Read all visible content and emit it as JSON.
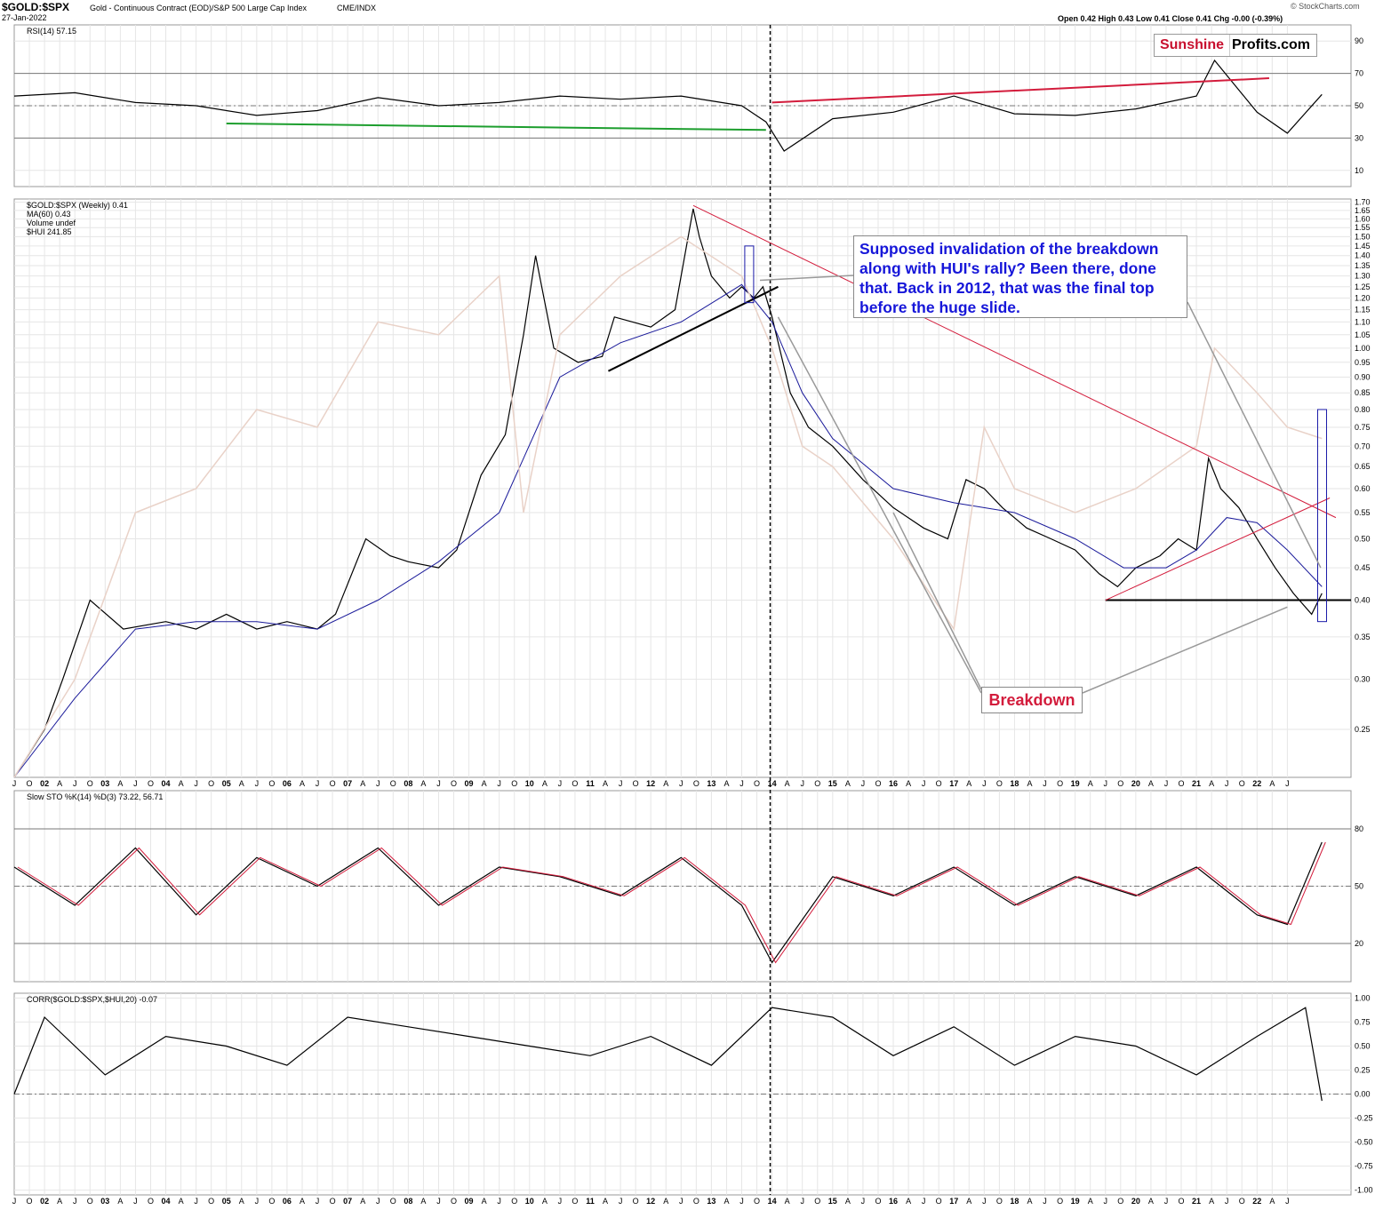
{
  "header": {
    "symbol": "$GOLD:$SPX",
    "description": "Gold - Continuous Contract (EOD)/S&P 500 Large Cap Index",
    "exchange": "CME/INDX",
    "date": "27-Jan-2022",
    "ohlc": "Open 0.42 High 0.43 Low 0.41 Close 0.41 Chg -0.00 (-0.39%)",
    "credit": "© StockCharts.com"
  },
  "logo": {
    "part1": "Sunshine",
    "part2": "Profits.com"
  },
  "annotations": {
    "invalidation": "Supposed invalidation of the breakdown along with HUI's rally? Been there, done that. Back in 2012, that was the final top before the huge slide.",
    "breakdown": "Breakdown"
  },
  "colors": {
    "price_up": "#000000",
    "price_down": "#d31c3c",
    "ma": "#1a1a9a",
    "hui": "#e9d2c8",
    "green_line": "#1d9e2e",
    "red_line": "#d31c3c",
    "blue_box": "#1a1aa8"
  },
  "chart_data": [
    {
      "type": "line",
      "panel": "RSI",
      "legend": "RSI(14) 57.15",
      "yticks": [
        10,
        30,
        50,
        70,
        90
      ],
      "ylim": [
        0,
        100
      ],
      "levels": [
        30,
        50,
        70
      ],
      "x": [
        2000.5,
        2001.5,
        2002.5,
        2003.5,
        2004.5,
        2005.5,
        2006.5,
        2007.5,
        2008.5,
        2009.5,
        2010.5,
        2011.5,
        2012.5,
        2012.9,
        2013.2,
        2014.0,
        2015.0,
        2016.0,
        2017.0,
        2018.0,
        2019.0,
        2020.0,
        2020.3,
        2021.0,
        2021.5,
        2022.07
      ],
      "values": [
        56,
        58,
        52,
        50,
        44,
        47,
        55,
        50,
        52,
        56,
        54,
        56,
        50,
        40,
        22,
        42,
        46,
        56,
        45,
        44,
        48,
        56,
        78,
        46,
        33,
        57
      ]
    },
    {
      "type": "line",
      "panel": "price",
      "legend": [
        "$GOLD:$SPX (Weekly) 0.41",
        "MA(60) 0.43",
        "Volume undef",
        "$HUI 241.85"
      ],
      "yscale": "log",
      "yticks": [
        0.25,
        0.3,
        0.35,
        0.4,
        0.45,
        0.5,
        0.55,
        0.6,
        0.65,
        0.7,
        0.75,
        0.8,
        0.85,
        0.9,
        0.95,
        1.0,
        1.05,
        1.1,
        1.15,
        1.2,
        1.25,
        1.3,
        1.35,
        1.4,
        1.45,
        1.5,
        1.55,
        1.6,
        1.65,
        1.7
      ],
      "xticks": [
        "J",
        "O",
        "02",
        "A",
        "J",
        "O",
        "03",
        "A",
        "J",
        "O",
        "04",
        "A",
        "J",
        "O",
        "05",
        "A",
        "J",
        "O",
        "06",
        "A",
        "J",
        "O",
        "07",
        "A",
        "J",
        "O",
        "08",
        "A",
        "J",
        "O",
        "09",
        "A",
        "J",
        "O",
        "10",
        "A",
        "J",
        "O",
        "11",
        "A",
        "J",
        "O",
        "12",
        "A",
        "J",
        "O",
        "13",
        "A",
        "J",
        "O",
        "14",
        "A",
        "J",
        "O",
        "15",
        "A",
        "J",
        "O",
        "16",
        "A",
        "J",
        "O",
        "17",
        "A",
        "J",
        "O",
        "18",
        "A",
        "J",
        "O",
        "19",
        "A",
        "J",
        "O",
        "20",
        "A",
        "J",
        "O",
        "21",
        "A",
        "J",
        "O",
        "22",
        "A",
        "J"
      ],
      "ylim": [
        0.21,
        1.72
      ],
      "series": [
        {
          "name": "$GOLD:$SPX",
          "x": [
            2000.5,
            2001.0,
            2001.3,
            2001.75,
            2002.3,
            2003.0,
            2003.5,
            2004.0,
            2004.5,
            2005.0,
            2005.5,
            2005.8,
            2006.3,
            2006.7,
            2007.0,
            2007.5,
            2007.8,
            2008.2,
            2008.6,
            2008.9,
            2009.1,
            2009.4,
            2009.8,
            2010.2,
            2010.4,
            2010.7,
            2011.0,
            2011.4,
            2011.7,
            2011.8,
            2012.0,
            2012.3,
            2012.5,
            2012.7,
            2012.85,
            2013.0,
            2013.3,
            2013.6,
            2014.0,
            2014.5,
            2015.0,
            2015.5,
            2015.9,
            2016.2,
            2016.5,
            2016.8,
            2017.2,
            2017.6,
            2018.0,
            2018.4,
            2018.7,
            2019.0,
            2019.4,
            2019.7,
            2020.0,
            2020.2,
            2020.4,
            2020.7,
            2021.0,
            2021.3,
            2021.6,
            2021.9,
            2022.07
          ],
          "values": [
            0.21,
            0.25,
            0.3,
            0.4,
            0.36,
            0.37,
            0.36,
            0.38,
            0.36,
            0.37,
            0.36,
            0.38,
            0.5,
            0.47,
            0.46,
            0.45,
            0.48,
            0.63,
            0.73,
            1.05,
            1.4,
            1.0,
            0.95,
            0.97,
            1.12,
            1.1,
            1.08,
            1.15,
            1.66,
            1.5,
            1.3,
            1.2,
            1.25,
            1.2,
            1.25,
            1.12,
            0.85,
            0.75,
            0.7,
            0.62,
            0.56,
            0.52,
            0.5,
            0.62,
            0.6,
            0.56,
            0.52,
            0.5,
            0.48,
            0.44,
            0.42,
            0.45,
            0.47,
            0.5,
            0.48,
            0.67,
            0.6,
            0.56,
            0.5,
            0.45,
            0.41,
            0.38,
            0.41
          ]
        },
        {
          "name": "MA(60)",
          "x": [
            2000.5,
            2001.5,
            2002.5,
            2003.5,
            2004.5,
            2005.5,
            2006.5,
            2007.5,
            2008.5,
            2009.5,
            2010.5,
            2011.5,
            2012.5,
            2013.0,
            2013.5,
            2014.0,
            2015.0,
            2016.0,
            2017.0,
            2018.0,
            2018.8,
            2019.5,
            2020.0,
            2020.5,
            2021.0,
            2021.5,
            2022.07
          ],
          "values": [
            0.21,
            0.28,
            0.36,
            0.37,
            0.37,
            0.36,
            0.4,
            0.46,
            0.55,
            0.9,
            1.02,
            1.1,
            1.26,
            1.1,
            0.85,
            0.72,
            0.6,
            0.57,
            0.55,
            0.5,
            0.45,
            0.45,
            0.48,
            0.54,
            0.53,
            0.48,
            0.42
          ]
        },
        {
          "name": "$HUI",
          "x": [
            2000.5,
            2001.5,
            2002.5,
            2003.5,
            2004.5,
            2005.5,
            2006.5,
            2007.5,
            2008.5,
            2008.9,
            2009.5,
            2010.5,
            2011.5,
            2012.5,
            2013.0,
            2013.5,
            2014.0,
            2015.0,
            2016.0,
            2016.5,
            2017.0,
            2018.0,
            2019.0,
            2020.0,
            2020.3,
            2021.0,
            2021.5,
            2022.07
          ],
          "values": [
            0.21,
            0.3,
            0.55,
            0.6,
            0.8,
            0.75,
            1.1,
            1.05,
            1.3,
            0.55,
            1.05,
            1.3,
            1.5,
            1.3,
            1.0,
            0.7,
            0.65,
            0.5,
            0.36,
            0.75,
            0.6,
            0.55,
            0.6,
            0.7,
            1.0,
            0.85,
            0.75,
            0.72
          ]
        }
      ]
    },
    {
      "type": "line",
      "panel": "STO",
      "legend": "Slow STO %K(14) %D(3) 73.22, 56.71",
      "yticks": [
        20,
        50,
        80
      ],
      "ylim": [
        0,
        100
      ],
      "levels": [
        20,
        50,
        80
      ],
      "x": [
        2000.5,
        2001.5,
        2002.5,
        2003.5,
        2004.5,
        2005.5,
        2006.5,
        2007.5,
        2008.5,
        2009.5,
        2010.5,
        2011.5,
        2012.5,
        2013.0,
        2014.0,
        2015.0,
        2016.0,
        2017.0,
        2018.0,
        2019.0,
        2020.0,
        2021.0,
        2021.5,
        2022.07
      ],
      "values": [
        60,
        40,
        70,
        35,
        65,
        50,
        70,
        40,
        60,
        55,
        45,
        65,
        40,
        10,
        55,
        45,
        60,
        40,
        55,
        45,
        60,
        35,
        30,
        73
      ]
    },
    {
      "type": "line",
      "panel": "CORR",
      "legend": "CORR($GOLD:$SPX,$HUI,20) -0.07",
      "yticks": [
        -1.0,
        -0.75,
        -0.5,
        -0.25,
        0.0,
        0.25,
        0.5,
        0.75,
        1.0
      ],
      "ylim": [
        -1.05,
        1.05
      ],
      "levels": [
        0.0
      ],
      "x": [
        2000.5,
        2001.0,
        2002.0,
        2003.0,
        2004.0,
        2005.0,
        2006.0,
        2007.0,
        2008.0,
        2009.0,
        2010.0,
        2011.0,
        2012.0,
        2013.0,
        2014.0,
        2015.0,
        2016.0,
        2017.0,
        2018.0,
        2019.0,
        2020.0,
        2021.0,
        2021.8,
        2022.07
      ],
      "values": [
        0.0,
        0.8,
        0.2,
        0.6,
        0.5,
        0.3,
        0.8,
        0.7,
        0.6,
        0.5,
        0.4,
        0.6,
        0.3,
        0.9,
        0.8,
        0.4,
        0.7,
        0.3,
        0.6,
        0.5,
        0.2,
        0.6,
        0.9,
        -0.07
      ]
    }
  ]
}
